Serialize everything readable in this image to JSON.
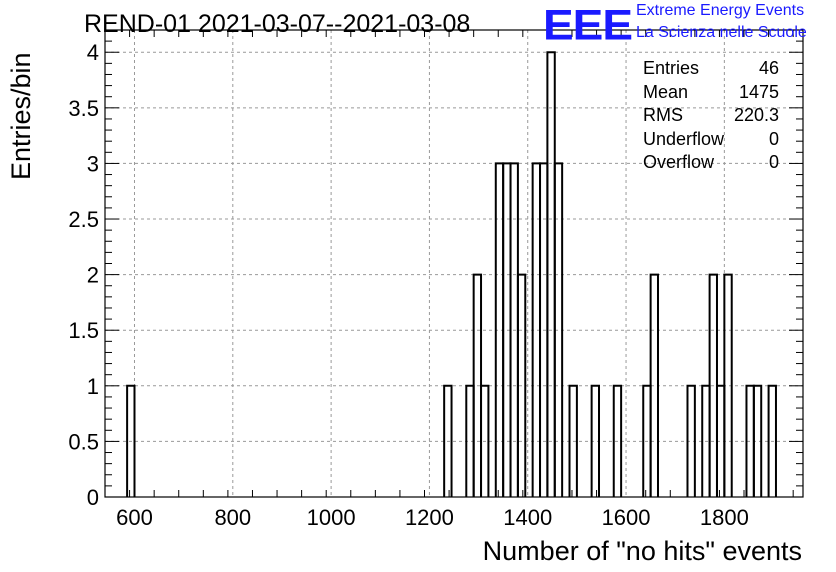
{
  "header": {
    "title": "REND-01 2021-03-07--2021-03-08",
    "logo_text": "EEE",
    "logo_line1": "Extreme Energy Events",
    "logo_line2": "La Scienza nelle Scuole"
  },
  "stats": [
    {
      "label": "Entries",
      "value": "46"
    },
    {
      "label": "Mean",
      "value": "1475"
    },
    {
      "label": "RMS",
      "value": "220.3"
    },
    {
      "label": "Underflow",
      "value": "0"
    },
    {
      "label": "Overflow",
      "value": "0"
    }
  ],
  "chart_data": {
    "type": "bar",
    "histogram": true,
    "xlabel": "Number of \"no hits\" events",
    "ylabel": "Entries/bin",
    "xlim": [
      540,
      1960
    ],
    "ylim": [
      0,
      4.2
    ],
    "bin_width": 15,
    "grid": true,
    "xticks": [
      "600",
      "800",
      "1000",
      "1200",
      "1400",
      "1600",
      "1800"
    ],
    "xtick_values": [
      600,
      800,
      1000,
      1200,
      1400,
      1600,
      1800
    ],
    "yticks": [
      "0",
      "0.5",
      "1",
      "1.5",
      "2",
      "2.5",
      "3",
      "3.5",
      "4"
    ],
    "ytick_values": [
      0,
      0.5,
      1,
      1.5,
      2,
      2.5,
      3,
      3.5,
      4
    ],
    "bins": [
      {
        "x": 585,
        "count": 1
      },
      {
        "x": 1230,
        "count": 1
      },
      {
        "x": 1275,
        "count": 1
      },
      {
        "x": 1290,
        "count": 2
      },
      {
        "x": 1305,
        "count": 1
      },
      {
        "x": 1335,
        "count": 3
      },
      {
        "x": 1350,
        "count": 3
      },
      {
        "x": 1365,
        "count": 3
      },
      {
        "x": 1380,
        "count": 2
      },
      {
        "x": 1410,
        "count": 3
      },
      {
        "x": 1425,
        "count": 3
      },
      {
        "x": 1440,
        "count": 4
      },
      {
        "x": 1455,
        "count": 3
      },
      {
        "x": 1485,
        "count": 1
      },
      {
        "x": 1530,
        "count": 1
      },
      {
        "x": 1575,
        "count": 1
      },
      {
        "x": 1635,
        "count": 1
      },
      {
        "x": 1650,
        "count": 2
      },
      {
        "x": 1725,
        "count": 1
      },
      {
        "x": 1755,
        "count": 1
      },
      {
        "x": 1770,
        "count": 2
      },
      {
        "x": 1785,
        "count": 1
      },
      {
        "x": 1800,
        "count": 2
      },
      {
        "x": 1845,
        "count": 1
      },
      {
        "x": 1860,
        "count": 1
      },
      {
        "x": 1890,
        "count": 1
      }
    ]
  }
}
